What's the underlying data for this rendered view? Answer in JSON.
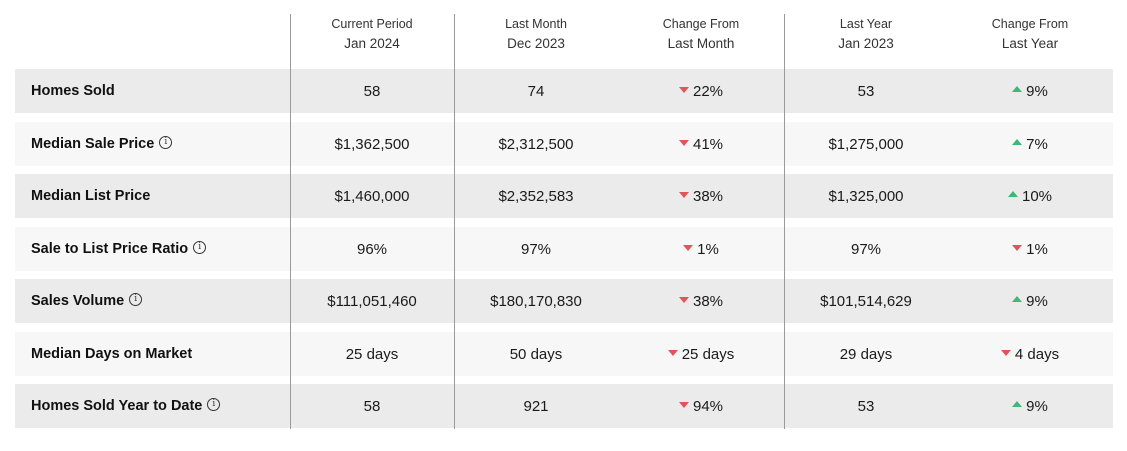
{
  "columns": [
    {
      "line1": "Current Period",
      "line2": "Jan 2024"
    },
    {
      "line1": "Last Month",
      "line2": "Dec 2023"
    },
    {
      "line1": "Change From",
      "line2": "Last Month"
    },
    {
      "line1": "Last Year",
      "line2": "Jan 2023"
    },
    {
      "line1": "Change From",
      "line2": "Last Year"
    }
  ],
  "rows": [
    {
      "label": "Homes Sold",
      "info": false,
      "current": "58",
      "last_month": "74",
      "change_month": "22%",
      "change_month_dir": "down",
      "last_year": "53",
      "change_year": "9%",
      "change_year_dir": "up"
    },
    {
      "label": "Median Sale Price",
      "info": true,
      "current": "$1,362,500",
      "last_month": "$2,312,500",
      "change_month": "41%",
      "change_month_dir": "down",
      "last_year": "$1,275,000",
      "change_year": "7%",
      "change_year_dir": "up"
    },
    {
      "label": "Median List Price",
      "info": false,
      "current": "$1,460,000",
      "last_month": "$2,352,583",
      "change_month": "38%",
      "change_month_dir": "down",
      "last_year": "$1,325,000",
      "change_year": "10%",
      "change_year_dir": "up"
    },
    {
      "label": "Sale to List Price Ratio",
      "info": true,
      "current": "96%",
      "last_month": "97%",
      "change_month": "1%",
      "change_month_dir": "down",
      "last_year": "97%",
      "change_year": "1%",
      "change_year_dir": "down"
    },
    {
      "label": "Sales Volume",
      "info": true,
      "current": "$111,051,460",
      "last_month": "$180,170,830",
      "change_month": "38%",
      "change_month_dir": "down",
      "last_year": "$101,514,629",
      "change_year": "9%",
      "change_year_dir": "up"
    },
    {
      "label": "Median Days on Market",
      "info": false,
      "current": "25 days",
      "last_month": "50 days",
      "change_month": "25 days",
      "change_month_dir": "down",
      "last_year": "29 days",
      "change_year": "4 days",
      "change_year_dir": "down"
    },
    {
      "label": "Homes Sold Year to Date",
      "info": true,
      "current": "58",
      "last_month": "921",
      "change_month": "94%",
      "change_month_dir": "down",
      "last_year": "53",
      "change_year": "9%",
      "change_year_dir": "up"
    }
  ],
  "colors": {
    "up": "#3cb878",
    "down": "#e0545a",
    "row_shade": "#ebebeb",
    "row_light": "#f7f7f7"
  }
}
